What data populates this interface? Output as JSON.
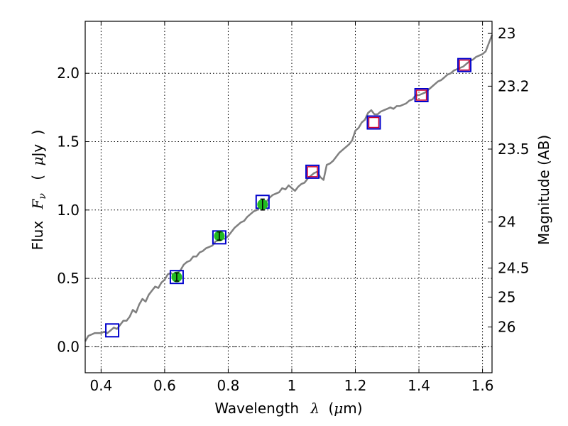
{
  "chart_data": {
    "type": "line",
    "xlabel": {
      "main": "Wavelength",
      "symbol": "λ",
      "unit_open": "(",
      "unit_mu": "μ",
      "unit": "m)"
    },
    "ylabel": {
      "main": "Flux",
      "symbol": "F",
      "sub": "ν",
      "unit_open": "(",
      "unit_mu": "μ",
      "unit": "Jy",
      "unit_close": ")"
    },
    "y2label": "Magnitude (AB)",
    "xlim": [
      0.35,
      1.63
    ],
    "ylim": [
      -0.19,
      2.38
    ],
    "x_ticks": [
      0.4,
      0.6,
      0.8,
      1.0,
      1.2,
      1.4,
      1.6
    ],
    "x_tick_labels": [
      "0.4",
      "0.6",
      "0.8",
      "1",
      "1.2",
      "1.4",
      "1.6"
    ],
    "y_ticks": [
      0.0,
      0.5,
      1.0,
      1.5,
      2.0
    ],
    "y_tick_labels": [
      "0.0",
      "0.5",
      "1.0",
      "1.5",
      "2.0"
    ],
    "mag_ticks": [
      23,
      23.2,
      23.5,
      24,
      24.5,
      25,
      26
    ],
    "mag_tick_labels": [
      "23",
      "23.2",
      "23.5",
      "24",
      "24.5",
      "25",
      "26"
    ],
    "grid": true,
    "zero_line": 0.0,
    "colors": {
      "spectrum": "#808080",
      "model_box": "#0000cc",
      "ir_box": "#cc0033",
      "observed": "#22bb22",
      "error": "#000000"
    },
    "spectrum": {
      "x": [
        0.35,
        0.36,
        0.37,
        0.38,
        0.39,
        0.4,
        0.41,
        0.42,
        0.43,
        0.44,
        0.45,
        0.46,
        0.47,
        0.48,
        0.49,
        0.5,
        0.51,
        0.52,
        0.53,
        0.54,
        0.55,
        0.56,
        0.57,
        0.58,
        0.59,
        0.6,
        0.61,
        0.62,
        0.63,
        0.64,
        0.65,
        0.66,
        0.67,
        0.68,
        0.69,
        0.7,
        0.71,
        0.72,
        0.73,
        0.74,
        0.75,
        0.76,
        0.77,
        0.78,
        0.79,
        0.8,
        0.81,
        0.82,
        0.83,
        0.84,
        0.85,
        0.86,
        0.87,
        0.88,
        0.89,
        0.9,
        0.91,
        0.92,
        0.93,
        0.94,
        0.95,
        0.96,
        0.97,
        0.98,
        0.99,
        1.0,
        1.01,
        1.02,
        1.03,
        1.04,
        1.05,
        1.06,
        1.07,
        1.08,
        1.09,
        1.1,
        1.11,
        1.12,
        1.13,
        1.14,
        1.15,
        1.16,
        1.17,
        1.18,
        1.19,
        1.2,
        1.21,
        1.22,
        1.23,
        1.24,
        1.25,
        1.26,
        1.27,
        1.28,
        1.29,
        1.3,
        1.31,
        1.32,
        1.33,
        1.34,
        1.35,
        1.36,
        1.37,
        1.38,
        1.39,
        1.4,
        1.41,
        1.42,
        1.43,
        1.44,
        1.45,
        1.46,
        1.47,
        1.48,
        1.49,
        1.5,
        1.51,
        1.52,
        1.53,
        1.54,
        1.55,
        1.56,
        1.57,
        1.58,
        1.59,
        1.6,
        1.61,
        1.62,
        1.63
      ],
      "y": [
        0.04,
        0.08,
        0.09,
        0.1,
        0.1,
        0.1,
        0.11,
        0.1,
        0.12,
        0.14,
        0.13,
        0.16,
        0.19,
        0.19,
        0.22,
        0.27,
        0.25,
        0.31,
        0.35,
        0.33,
        0.38,
        0.41,
        0.44,
        0.43,
        0.47,
        0.49,
        0.53,
        0.54,
        0.52,
        0.54,
        0.56,
        0.6,
        0.62,
        0.63,
        0.66,
        0.66,
        0.69,
        0.7,
        0.72,
        0.73,
        0.74,
        0.77,
        0.78,
        0.79,
        0.79,
        0.81,
        0.84,
        0.87,
        0.89,
        0.91,
        0.92,
        0.95,
        0.97,
        0.99,
        1.0,
        1.02,
        1.05,
        1.06,
        1.09,
        1.11,
        1.12,
        1.13,
        1.16,
        1.15,
        1.18,
        1.16,
        1.14,
        1.17,
        1.19,
        1.2,
        1.23,
        1.25,
        1.27,
        1.28,
        1.24,
        1.22,
        1.33,
        1.34,
        1.36,
        1.39,
        1.42,
        1.44,
        1.46,
        1.48,
        1.51,
        1.58,
        1.6,
        1.64,
        1.66,
        1.71,
        1.73,
        1.7,
        1.7,
        1.72,
        1.73,
        1.74,
        1.75,
        1.74,
        1.76,
        1.76,
        1.77,
        1.78,
        1.8,
        1.81,
        1.84,
        1.84,
        1.85,
        1.86,
        1.88,
        1.9,
        1.92,
        1.94,
        1.95,
        1.97,
        1.99,
        2.0,
        2.02,
        2.03,
        2.04,
        2.05,
        2.07,
        2.09,
        2.1,
        2.12,
        2.13,
        2.14,
        2.16,
        2.22,
        2.28
      ]
    },
    "model_boxes": [
      {
        "x": 0.435,
        "y": 0.12,
        "kind": "optical"
      },
      {
        "x": 0.638,
        "y": 0.51,
        "kind": "optical"
      },
      {
        "x": 0.772,
        "y": 0.8,
        "kind": "optical"
      },
      {
        "x": 0.908,
        "y": 1.06,
        "kind": "optical"
      },
      {
        "x": 1.065,
        "y": 1.28,
        "kind": "ir"
      },
      {
        "x": 1.258,
        "y": 1.64,
        "kind": "ir"
      },
      {
        "x": 1.408,
        "y": 1.84,
        "kind": "ir"
      },
      {
        "x": 1.543,
        "y": 2.06,
        "kind": "ir"
      }
    ],
    "observed": [
      {
        "x": 0.638,
        "y": 0.51,
        "err": 0.03
      },
      {
        "x": 0.772,
        "y": 0.81,
        "err": 0.03
      },
      {
        "x": 0.908,
        "y": 1.04,
        "err": 0.04
      }
    ]
  }
}
